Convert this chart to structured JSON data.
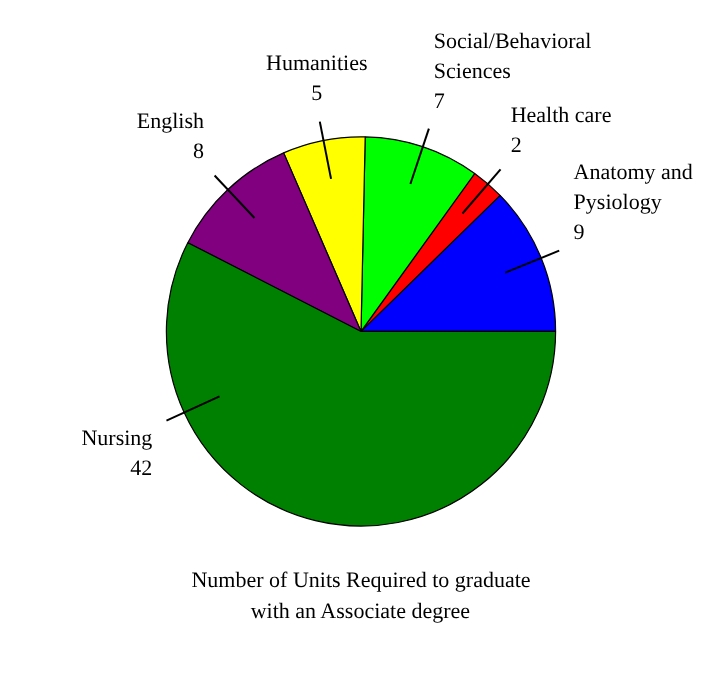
{
  "chart_data": {
    "type": "pie",
    "title": "Number of Units Required to graduate with an Associate degree",
    "categories": [
      "Anatomy and Pysiology",
      "Health care",
      "Social/Behavioral Sciences",
      "Humanities",
      "English",
      "Nursing"
    ],
    "values": [
      9,
      2,
      7,
      5,
      8,
      42
    ],
    "colors": [
      "#0000ff",
      "#ff0000",
      "#00ff00",
      "#ffff00",
      "#800080",
      "#008000"
    ],
    "data_labels": true
  }
}
